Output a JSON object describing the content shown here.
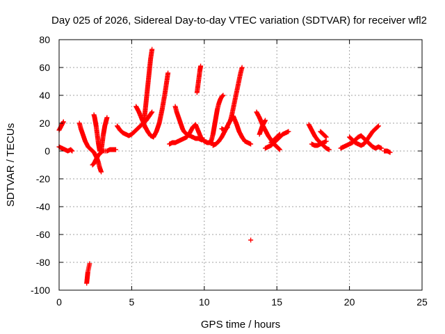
{
  "chart_data": {
    "type": "scatter",
    "title": "Day 025 of 2026, Sidereal Day-to-day VTEC variation (SDTVAR) for receiver wfl2",
    "xlabel": "GPS time / hours",
    "ylabel": "SDTVAR / TECUs",
    "xlim": [
      0,
      25
    ],
    "ylim": [
      -100,
      80
    ],
    "xticks": [
      0,
      5,
      10,
      15,
      20,
      25
    ],
    "yticks": [
      -100,
      -80,
      -60,
      -40,
      -20,
      0,
      20,
      40,
      60,
      80
    ],
    "grid": true,
    "marker": "plus",
    "color": "#ff0000",
    "series": [
      {
        "x": [
          0.0,
          0.1,
          0.2,
          0.3
        ],
        "y": [
          15,
          17,
          19,
          21
        ]
      },
      {
        "x": [
          0.0,
          0.2,
          0.4,
          0.6,
          0.8,
          0.9
        ],
        "y": [
          3,
          2,
          1,
          0,
          1,
          0
        ]
      },
      {
        "x": [
          1.4,
          1.5,
          1.6,
          1.7,
          1.8,
          1.9,
          2.0,
          2.1,
          2.2,
          2.3,
          2.4,
          2.5,
          2.6,
          2.7,
          2.8,
          2.9
        ],
        "y": [
          20,
          16,
          13,
          10,
          7,
          5,
          3,
          2,
          1,
          0,
          -1,
          -3,
          -5,
          -8,
          -12,
          -15
        ]
      },
      {
        "x": [
          2.3,
          2.4,
          2.5,
          2.6,
          2.7,
          2.8,
          2.9,
          3.0,
          3.1,
          3.2,
          3.3,
          3.5,
          3.7,
          3.9
        ],
        "y": [
          -10,
          -9,
          -7,
          -5,
          -3,
          -2,
          -1,
          0,
          0,
          0,
          0,
          1,
          1,
          1
        ]
      },
      {
        "x": [
          2.4,
          2.45,
          2.5,
          2.55,
          2.6,
          2.65,
          2.7,
          2.75,
          2.8
        ],
        "y": [
          26,
          24,
          21,
          18,
          14,
          10,
          6,
          3,
          0
        ]
      },
      {
        "x": [
          2.9,
          2.95,
          3.0,
          3.05,
          3.1,
          3.15,
          3.2,
          3.25,
          3.3
        ],
        "y": [
          0,
          4,
          8,
          12,
          15,
          18,
          20,
          22,
          24
        ]
      },
      {
        "x": [
          1.9,
          1.92,
          1.94,
          1.96,
          1.98,
          2.0,
          2.02,
          2.04,
          2.06,
          2.08,
          2.1
        ],
        "y": [
          -95,
          -93,
          -91,
          -89,
          -87,
          -86,
          -85,
          -84,
          -83,
          -82,
          -81
        ]
      },
      {
        "x": [
          4.0,
          4.2,
          4.4,
          4.6,
          4.8,
          5.0,
          5.2,
          5.4,
          5.6,
          5.8,
          6.0,
          6.2,
          6.4
        ],
        "y": [
          18,
          15,
          13,
          12,
          11,
          12,
          14,
          16,
          18,
          20,
          22,
          25,
          28
        ]
      },
      {
        "x": [
          5.3,
          5.5,
          5.7,
          5.9,
          6.1,
          6.3,
          6.5,
          6.7,
          6.9,
          7.1,
          7.3,
          7.5
        ],
        "y": [
          32,
          28,
          23,
          18,
          14,
          11,
          10,
          14,
          20,
          30,
          42,
          56
        ]
      },
      {
        "x": [
          5.8,
          5.9,
          6.0,
          6.1,
          6.2,
          6.3,
          6.4
        ],
        "y": [
          18,
          26,
          36,
          46,
          56,
          66,
          73
        ]
      },
      {
        "x": [
          7.6,
          7.8,
          8.0,
          8.2,
          8.4,
          8.6,
          8.8,
          9.0,
          9.2,
          9.4,
          9.6,
          9.8,
          10.0,
          10.2,
          10.4,
          10.6
        ],
        "y": [
          5,
          6,
          6,
          7,
          8,
          9,
          10,
          13,
          17,
          19,
          14,
          9,
          7,
          6,
          6,
          6
        ]
      },
      {
        "x": [
          8.0,
          8.1,
          8.2,
          8.3,
          8.4,
          8.5,
          8.6,
          8.8,
          9.0,
          9.2,
          9.4,
          9.6,
          9.8,
          10.0
        ],
        "y": [
          32,
          28,
          25,
          22,
          19,
          16,
          14,
          12,
          11,
          10,
          9,
          9,
          8,
          8
        ]
      },
      {
        "x": [
          9.5,
          9.55,
          9.6,
          9.65,
          9.7,
          9.75
        ],
        "y": [
          42,
          46,
          50,
          54,
          58,
          61
        ]
      },
      {
        "x": [
          10.6,
          10.8,
          11.0,
          11.2,
          11.4,
          11.6,
          11.8,
          12.0,
          12.2,
          12.4,
          12.6,
          12.8,
          13.0,
          13.2
        ],
        "y": [
          4,
          5,
          7,
          10,
          14,
          18,
          22,
          25,
          20,
          14,
          10,
          7,
          6,
          5
        ]
      },
      {
        "x": [
          10.5,
          10.6,
          10.7,
          10.8,
          10.9,
          11.0,
          11.1,
          11.2,
          11.3
        ],
        "y": [
          8,
          12,
          18,
          24,
          30,
          34,
          37,
          39,
          40
        ]
      },
      {
        "x": [
          11.8,
          11.9,
          12.0,
          12.1,
          12.2,
          12.3,
          12.4,
          12.5,
          12.6
        ],
        "y": [
          22,
          26,
          31,
          36,
          41,
          46,
          51,
          56,
          60
        ]
      },
      {
        "x": [
          11.2,
          11.4,
          11.6
        ],
        "y": [
          16,
          15,
          17
        ]
      },
      {
        "x": [
          13.2
        ],
        "y": [
          -64
        ]
      },
      {
        "x": [
          13.6,
          13.8,
          14.0,
          14.2,
          14.4,
          14.6,
          14.8,
          15.0,
          15.2
        ],
        "y": [
          28,
          24,
          19,
          15,
          11,
          8,
          5,
          3,
          1
        ]
      },
      {
        "x": [
          14.2,
          14.4,
          14.6,
          14.8,
          15.0,
          15.2,
          15.4,
          15.6,
          15.8
        ],
        "y": [
          2,
          3,
          4,
          6,
          8,
          10,
          12,
          13,
          14
        ]
      },
      {
        "x": [
          13.8,
          13.9,
          14.0,
          14.1,
          14.2
        ],
        "y": [
          12,
          15,
          18,
          20,
          22
        ]
      },
      {
        "x": [
          14.6,
          14.8,
          15.0,
          15.2
        ],
        "y": [
          6,
          8,
          10,
          12
        ]
      },
      {
        "x": [
          17.2,
          17.4,
          17.6,
          17.8,
          18.0,
          18.2,
          18.4,
          18.6
        ],
        "y": [
          19,
          15,
          11,
          8,
          6,
          4,
          2,
          1
        ]
      },
      {
        "x": [
          17.4,
          17.6,
          17.8,
          18.0,
          18.2,
          18.4
        ],
        "y": [
          5,
          4,
          4,
          5,
          6,
          7
        ]
      },
      {
        "x": [
          18.0,
          18.2,
          18.4
        ],
        "y": [
          14,
          12,
          10
        ]
      },
      {
        "x": [
          19.4,
          19.6,
          19.8,
          20.0,
          20.2,
          20.4,
          20.6,
          20.8,
          21.0,
          21.2,
          21.4,
          21.6,
          21.8,
          22.0,
          22.2
        ],
        "y": [
          2,
          3,
          4,
          5,
          6,
          8,
          10,
          11,
          9,
          7,
          5,
          3,
          2,
          3,
          2
        ]
      },
      {
        "x": [
          20.0,
          20.2,
          20.4,
          20.6,
          20.8,
          21.0,
          21.2,
          21.4,
          21.6,
          21.8,
          22.0
        ],
        "y": [
          10,
          8,
          6,
          5,
          4,
          5,
          8,
          11,
          14,
          16,
          18
        ]
      },
      {
        "x": [
          22.4,
          22.6,
          22.8
        ],
        "y": [
          0,
          0,
          -1
        ]
      }
    ]
  }
}
